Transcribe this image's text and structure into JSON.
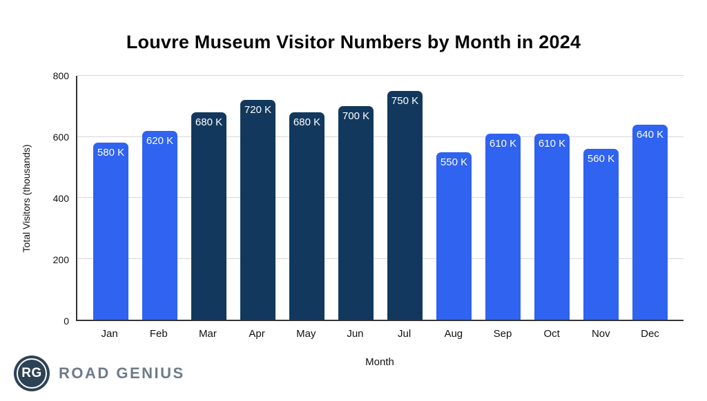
{
  "chart_data": {
    "type": "bar",
    "title": "Louvre Museum Visitor Numbers by Month in 2024",
    "xlabel": "Month",
    "ylabel": "Total Visitors (thousands)",
    "ylim": [
      0,
      800
    ],
    "yticks": [
      0,
      200,
      400,
      600,
      800
    ],
    "grid": true,
    "legend_position": "none",
    "categories": [
      "Jan",
      "Feb",
      "Mar",
      "Apr",
      "May",
      "Jun",
      "Jul",
      "Aug",
      "Sep",
      "Oct",
      "Nov",
      "Dec"
    ],
    "values": [
      580,
      620,
      680,
      720,
      680,
      700,
      750,
      550,
      610,
      610,
      560,
      640
    ],
    "value_labels": [
      "580 K",
      "620 K",
      "680 K",
      "720 K",
      "680 K",
      "700 K",
      "750 K",
      "550 K",
      "610 K",
      "610 K",
      "560 K",
      "640 K"
    ],
    "bar_colors": [
      "#2F63F0",
      "#2F63F0",
      "#12395D",
      "#12395D",
      "#12395D",
      "#12395D",
      "#12395D",
      "#2F63F0",
      "#2F63F0",
      "#2F63F0",
      "#2F63F0",
      "#2F63F0"
    ],
    "colors": {
      "primary_blue": "#2F63F0",
      "dark_navy": "#12395D",
      "gridline": "#d6d6d6",
      "axis": "#333333",
      "value_label_text": "#ffffff"
    }
  },
  "branding": {
    "logo_monogram": "RG",
    "logo_text": "ROAD GENIUS",
    "circle_color": "#2d4355",
    "text_color": "#6d7b87"
  }
}
